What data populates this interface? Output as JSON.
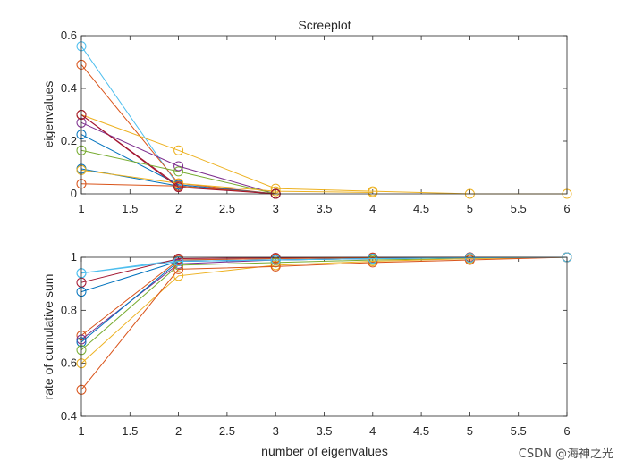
{
  "watermark": "CSDN @海神之光",
  "chart_data": [
    {
      "type": "line",
      "title": "Screeplot",
      "xlabel": "",
      "ylabel": "eigenvalues",
      "xlim": [
        1,
        6
      ],
      "ylim": [
        0,
        0.6
      ],
      "xticks": [
        1,
        1.5,
        2,
        2.5,
        3,
        3.5,
        4,
        4.5,
        5,
        5.5,
        6
      ],
      "xtick_labels": [
        "1",
        "1.5",
        "2",
        "2.5",
        "3",
        "3.5",
        "4",
        "4.5",
        "5",
        "5.5",
        "6"
      ],
      "yticks": [
        0,
        0.2,
        0.4,
        0.6
      ],
      "ytick_labels": [
        "0",
        "0.2",
        "0.4",
        "0.6"
      ],
      "marker": "open-circle",
      "grid": false,
      "series": [
        {
          "color": "#4DBEEE",
          "x": [
            1,
            2,
            3
          ],
          "y": [
            0.56,
            0.03,
            0.0
          ]
        },
        {
          "color": "#D95319",
          "x": [
            1,
            2,
            3
          ],
          "y": [
            0.49,
            0.04,
            0.0
          ]
        },
        {
          "color": "#A2142F",
          "x": [
            1,
            2,
            3
          ],
          "y": [
            0.3,
            0.03,
            0.0
          ]
        },
        {
          "color": "#7E2F8E",
          "x": [
            1,
            2,
            3
          ],
          "y": [
            0.27,
            0.105,
            0.0
          ]
        },
        {
          "color": "#EDB120",
          "x": [
            1,
            2,
            3,
            4,
            5,
            6
          ],
          "y": [
            0.3,
            0.165,
            0.02,
            0.01,
            0.0,
            0.0
          ]
        },
        {
          "color": "#0072BD",
          "x": [
            1,
            2,
            3
          ],
          "y": [
            0.225,
            0.035,
            0.0
          ]
        },
        {
          "color": "#77AC30",
          "x": [
            1,
            2,
            3
          ],
          "y": [
            0.165,
            0.085,
            0.0
          ]
        },
        {
          "color": "#0072BD",
          "x": [
            1,
            2,
            3
          ],
          "y": [
            0.095,
            0.03,
            0.0
          ]
        },
        {
          "color": "#EDB120",
          "x": [
            1,
            2,
            3,
            4
          ],
          "y": [
            0.09,
            0.04,
            0.01,
            0.005
          ]
        },
        {
          "color": "#D95319",
          "x": [
            1,
            2,
            3
          ],
          "y": [
            0.038,
            0.03,
            0.0
          ]
        },
        {
          "color": "#A2142F",
          "x": [
            1,
            2,
            3
          ],
          "y": [
            0.3,
            0.025,
            0.0
          ]
        }
      ]
    },
    {
      "type": "line",
      "title": "",
      "xlabel": "number of eigenvalues",
      "ylabel": "rate of cumulative sum",
      "xlim": [
        1,
        6
      ],
      "ylim": [
        0.4,
        1
      ],
      "xticks": [
        1,
        1.5,
        2,
        2.5,
        3,
        3.5,
        4,
        4.5,
        5,
        5.5,
        6
      ],
      "xtick_labels": [
        "1",
        "1.5",
        "2",
        "2.5",
        "3",
        "3.5",
        "4",
        "4.5",
        "5",
        "5.5",
        "6"
      ],
      "yticks": [
        0.4,
        0.6,
        0.8,
        1
      ],
      "ytick_labels": [
        "0.4",
        "0.6",
        "0.8",
        "1"
      ],
      "marker": "open-circle",
      "grid": false,
      "series": [
        {
          "color": "#4DBEEE",
          "x": [
            1,
            2,
            3,
            4,
            5,
            6
          ],
          "y": [
            0.94,
            0.99,
            0.995,
            0.998,
            0.999,
            1.0
          ]
        },
        {
          "color": "#A2142F",
          "x": [
            1,
            2,
            3,
            4,
            5,
            6
          ],
          "y": [
            0.905,
            0.995,
            0.998,
            0.999,
            1.0,
            1.0
          ]
        },
        {
          "color": "#0072BD",
          "x": [
            1,
            2,
            3,
            4,
            5,
            6
          ],
          "y": [
            0.87,
            0.985,
            0.99,
            0.995,
            0.998,
            1.0
          ]
        },
        {
          "color": "#D95319",
          "x": [
            1,
            2,
            3,
            4,
            5,
            6
          ],
          "y": [
            0.705,
            0.99,
            0.995,
            0.998,
            0.999,
            1.0
          ]
        },
        {
          "color": "#7E2F8E",
          "x": [
            1,
            2,
            3,
            4,
            5,
            6
          ],
          "y": [
            0.69,
            0.975,
            0.99,
            0.995,
            0.998,
            1.0
          ]
        },
        {
          "color": "#0072BD",
          "x": [
            1,
            2,
            3,
            4,
            5,
            6
          ],
          "y": [
            0.68,
            0.985,
            0.99,
            0.995,
            0.998,
            1.0
          ]
        },
        {
          "color": "#77AC30",
          "x": [
            1,
            2,
            3,
            4,
            5,
            6
          ],
          "y": [
            0.65,
            0.97,
            0.98,
            0.99,
            0.995,
            1.0
          ]
        },
        {
          "color": "#EDB120",
          "x": [
            1,
            2,
            3,
            4,
            5,
            6
          ],
          "y": [
            0.6,
            0.93,
            0.97,
            0.985,
            0.995,
            1.0
          ]
        },
        {
          "color": "#D95319",
          "x": [
            1,
            2,
            3,
            4,
            5,
            6
          ],
          "y": [
            0.5,
            0.955,
            0.965,
            0.98,
            0.99,
            1.0
          ]
        },
        {
          "color": "#4DBEEE",
          "x": [
            1,
            2,
            3,
            4,
            5,
            6
          ],
          "y": [
            0.94,
            0.985,
            0.99,
            0.995,
            0.998,
            1.0
          ]
        }
      ]
    }
  ]
}
